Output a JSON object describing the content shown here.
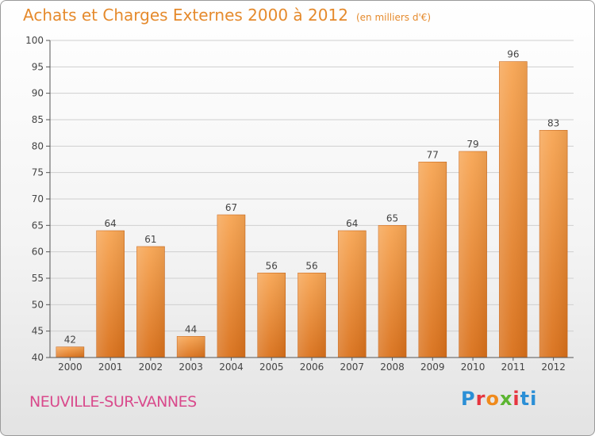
{
  "chart_data": {
    "type": "bar",
    "title": "Achats et Charges Externes 2000 à 2012",
    "subtitle": "(en milliers d'€)",
    "categories": [
      "2000",
      "2001",
      "2002",
      "2003",
      "2004",
      "2005",
      "2006",
      "2007",
      "2008",
      "2009",
      "2010",
      "2011",
      "2012"
    ],
    "values": [
      42,
      64,
      61,
      44,
      67,
      56,
      56,
      64,
      65,
      77,
      79,
      96,
      83
    ],
    "ylim": [
      40,
      100
    ],
    "yticks": [
      40,
      45,
      50,
      55,
      60,
      65,
      70,
      75,
      80,
      85,
      90,
      95,
      100
    ],
    "grid": true,
    "bar_color_top": "#f7a553",
    "bar_color_bottom": "#d9701a"
  },
  "footer": {
    "location": "NEUVILLE-SUR-VANNES",
    "logo_text": "Proxiti"
  },
  "colors": {
    "title": "#e58a2c",
    "location": "#d94a8c"
  }
}
